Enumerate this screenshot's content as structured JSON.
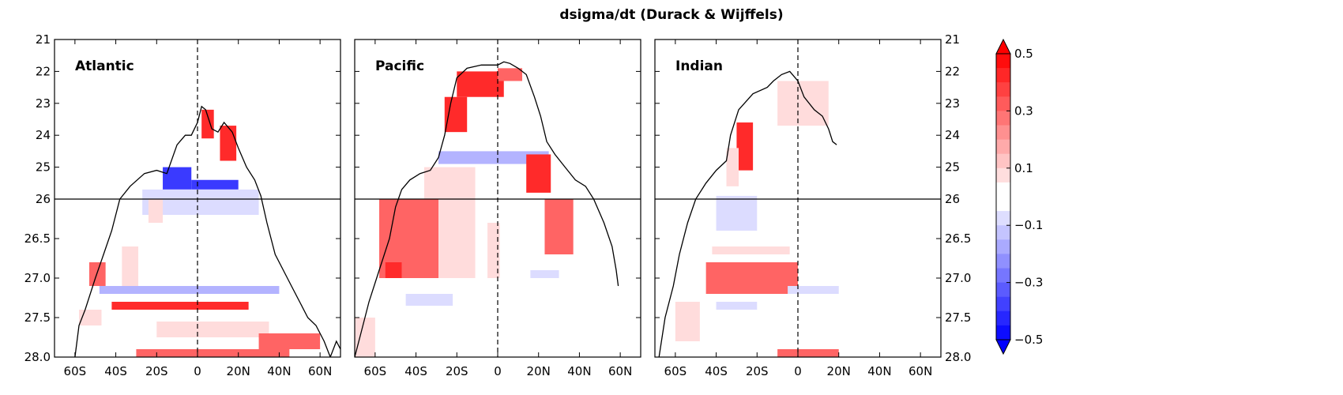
{
  "title": "dsigma/dt (Durack & Wijffels)",
  "colors": {
    "strong_pos": "#ff2a2a",
    "mid_pos": "#ff6464",
    "weak_pos": "#ffb3b3",
    "faint_pos": "#ffdcdc",
    "faint_neg": "#dcdcff",
    "weak_neg": "#b3b3ff",
    "mid_neg": "#6e6eff",
    "strong_neg": "#3a3aff"
  },
  "chart_data": {
    "type": "heatmap",
    "xlim": [
      -70,
      70
    ],
    "y_upper": {
      "range": [
        21,
        26
      ],
      "ticks": [
        21,
        22,
        23,
        24,
        25,
        26
      ]
    },
    "y_lower": {
      "range": [
        26,
        28
      ],
      "ticks": [
        "26",
        "26.5",
        "27.0",
        "27.5",
        "28.0"
      ]
    },
    "x_ticks": [
      {
        "value": -60,
        "label": "60S"
      },
      {
        "value": -40,
        "label": "40S"
      },
      {
        "value": -20,
        "label": "20S"
      },
      {
        "value": 0,
        "label": "0"
      },
      {
        "value": 20,
        "label": "20N"
      },
      {
        "value": 40,
        "label": "40N"
      },
      {
        "value": 60,
        "label": "60N"
      }
    ],
    "panels": [
      {
        "name": "Atlantic",
        "outcrop": [
          [
            -60,
            28.0
          ],
          [
            -58,
            27.6
          ],
          [
            -55,
            27.4
          ],
          [
            -50,
            27.0
          ],
          [
            -46,
            26.7
          ],
          [
            -42,
            26.4
          ],
          [
            -38,
            26.0
          ],
          [
            -33,
            25.6
          ],
          [
            -26,
            25.2
          ],
          [
            -20,
            25.1
          ],
          [
            -15,
            25.2
          ],
          [
            -10,
            24.3
          ],
          [
            -6,
            24.0
          ],
          [
            -3,
            24.0
          ],
          [
            0,
            23.6
          ],
          [
            2,
            23.1
          ],
          [
            4,
            23.2
          ],
          [
            7,
            23.8
          ],
          [
            10,
            23.9
          ],
          [
            13,
            23.6
          ],
          [
            17,
            23.9
          ],
          [
            20,
            24.4
          ],
          [
            24,
            25.0
          ],
          [
            28,
            25.4
          ],
          [
            31,
            25.9
          ],
          [
            34,
            26.3
          ],
          [
            38,
            26.7
          ],
          [
            42,
            26.9
          ],
          [
            46,
            27.1
          ],
          [
            50,
            27.3
          ],
          [
            54,
            27.5
          ],
          [
            58,
            27.6
          ],
          [
            62,
            27.8
          ],
          [
            65,
            28.0
          ],
          [
            68,
            27.8
          ],
          [
            70,
            27.9
          ]
        ],
        "cells": [
          {
            "lat": [
              2,
              8
            ],
            "sigma": [
              23.2,
              24.1
            ],
            "value": 0.3
          },
          {
            "lat": [
              11,
              19
            ],
            "sigma": [
              23.7,
              24.8
            ],
            "value": 0.3
          },
          {
            "lat": [
              -17,
              -3
            ],
            "sigma": [
              25.0,
              25.7
            ],
            "value": -0.3
          },
          {
            "lat": [
              -3,
              20
            ],
            "sigma": [
              25.4,
              25.7
            ],
            "value": -0.3
          },
          {
            "lat": [
              -27,
              30
            ],
            "sigma": [
              25.7,
              26.2
            ],
            "value": -0.1
          },
          {
            "lat": [
              -24,
              -17
            ],
            "sigma": [
              26.0,
              26.3
            ],
            "value": 0.1
          },
          {
            "lat": [
              -53,
              -45
            ],
            "sigma": [
              26.8,
              27.1
            ],
            "value": 0.2
          },
          {
            "lat": [
              -37,
              -29
            ],
            "sigma": [
              26.6,
              27.1
            ],
            "value": 0.1
          },
          {
            "lat": [
              -48,
              40
            ],
            "sigma": [
              27.1,
              27.2
            ],
            "value": -0.15
          },
          {
            "lat": [
              -42,
              25
            ],
            "sigma": [
              27.3,
              27.4
            ],
            "value": 0.3
          },
          {
            "lat": [
              -58,
              -47
            ],
            "sigma": [
              27.4,
              27.6
            ],
            "value": 0.1
          },
          {
            "lat": [
              -20,
              35
            ],
            "sigma": [
              27.55,
              27.75
            ],
            "value": 0.1
          },
          {
            "lat": [
              30,
              60
            ],
            "sigma": [
              27.7,
              27.9
            ],
            "value": 0.2
          },
          {
            "lat": [
              -30,
              45
            ],
            "sigma": [
              27.9,
              28.0
            ],
            "value": 0.2
          }
        ]
      },
      {
        "name": "Pacific",
        "outcrop": [
          [
            -70,
            28.0
          ],
          [
            -67,
            27.7
          ],
          [
            -63,
            27.3
          ],
          [
            -58,
            26.9
          ],
          [
            -53,
            26.5
          ],
          [
            -50,
            26.1
          ],
          [
            -47,
            25.7
          ],
          [
            -43,
            25.4
          ],
          [
            -38,
            25.2
          ],
          [
            -33,
            25.1
          ],
          [
            -29,
            24.7
          ],
          [
            -26,
            24.0
          ],
          [
            -23,
            23.0
          ],
          [
            -20,
            22.2
          ],
          [
            -15,
            21.9
          ],
          [
            -8,
            21.8
          ],
          [
            0,
            21.8
          ],
          [
            3,
            21.7
          ],
          [
            6,
            21.75
          ],
          [
            10,
            21.9
          ],
          [
            14,
            22.1
          ],
          [
            18,
            22.8
          ],
          [
            21,
            23.4
          ],
          [
            24,
            24.2
          ],
          [
            28,
            24.6
          ],
          [
            33,
            25.0
          ],
          [
            38,
            25.4
          ],
          [
            43,
            25.6
          ],
          [
            47,
            26.0
          ],
          [
            52,
            26.3
          ],
          [
            56,
            26.6
          ],
          [
            58,
            26.9
          ],
          [
            59,
            27.1
          ]
        ],
        "cells": [
          {
            "lat": [
              -20,
              3
            ],
            "sigma": [
              22.0,
              22.8
            ],
            "value": 0.3
          },
          {
            "lat": [
              -26,
              -15
            ],
            "sigma": [
              22.8,
              23.9
            ],
            "value": 0.3
          },
          {
            "lat": [
              0,
              12
            ],
            "sigma": [
              21.9,
              22.3
            ],
            "value": 0.2
          },
          {
            "lat": [
              -29,
              25
            ],
            "sigma": [
              24.5,
              24.9
            ],
            "value": -0.15
          },
          {
            "lat": [
              14,
              26
            ],
            "sigma": [
              24.6,
              25.8
            ],
            "value": 0.35
          },
          {
            "lat": [
              -36,
              -11
            ],
            "sigma": [
              25.0,
              27.0
            ],
            "value": 0.1
          },
          {
            "lat": [
              -58,
              -29
            ],
            "sigma": [
              26.0,
              27.0
            ],
            "value": 0.2
          },
          {
            "lat": [
              -5,
              1
            ],
            "sigma": [
              26.3,
              27.0
            ],
            "value": 0.1
          },
          {
            "lat": [
              23,
              37
            ],
            "sigma": [
              26.0,
              26.7
            ],
            "value": 0.2
          },
          {
            "lat": [
              -55,
              -47
            ],
            "sigma": [
              26.8,
              27.0
            ],
            "value": 0.3
          },
          {
            "lat": [
              -45,
              -22
            ],
            "sigma": [
              27.2,
              27.35
            ],
            "value": -0.1
          },
          {
            "lat": [
              16,
              30
            ],
            "sigma": [
              26.9,
              27.0
            ],
            "value": -0.1
          },
          {
            "lat": [
              -70,
              -60
            ],
            "sigma": [
              27.5,
              28.0
            ],
            "value": 0.1
          }
        ]
      },
      {
        "name": "Indian",
        "outcrop": [
          [
            -68,
            28.0
          ],
          [
            -65,
            27.5
          ],
          [
            -61,
            27.1
          ],
          [
            -58,
            26.7
          ],
          [
            -54,
            26.3
          ],
          [
            -50,
            26.0
          ],
          [
            -45,
            25.5
          ],
          [
            -40,
            25.1
          ],
          [
            -35,
            24.8
          ],
          [
            -33,
            24.0
          ],
          [
            -29,
            23.2
          ],
          [
            -22,
            22.7
          ],
          [
            -15,
            22.5
          ],
          [
            -12,
            22.3
          ],
          [
            -8,
            22.1
          ],
          [
            -4,
            22.0
          ],
          [
            0,
            22.3
          ],
          [
            3,
            22.8
          ],
          [
            8,
            23.2
          ],
          [
            12,
            23.4
          ],
          [
            15,
            23.8
          ],
          [
            17,
            24.2
          ],
          [
            19,
            24.3
          ]
        ],
        "cells": [
          {
            "lat": [
              -10,
              15
            ],
            "sigma": [
              22.3,
              23.7
            ],
            "value": 0.1
          },
          {
            "lat": [
              -30,
              -22
            ],
            "sigma": [
              23.6,
              25.1
            ],
            "value": 0.3
          },
          {
            "lat": [
              -35,
              -29
            ],
            "sigma": [
              24.4,
              25.6
            ],
            "value": 0.1
          },
          {
            "lat": [
              -40,
              -20
            ],
            "sigma": [
              25.9,
              26.4
            ],
            "value": -0.1
          },
          {
            "lat": [
              -42,
              -4
            ],
            "sigma": [
              26.6,
              26.7
            ],
            "value": 0.1
          },
          {
            "lat": [
              -45,
              0
            ],
            "sigma": [
              26.8,
              27.2
            ],
            "value": 0.2
          },
          {
            "lat": [
              -40,
              -20
            ],
            "sigma": [
              27.3,
              27.4
            ],
            "value": -0.1
          },
          {
            "lat": [
              -60,
              -48
            ],
            "sigma": [
              27.3,
              27.8
            ],
            "value": 0.1
          },
          {
            "lat": [
              -5,
              20
            ],
            "sigma": [
              27.1,
              27.2
            ],
            "value": -0.1
          },
          {
            "lat": [
              -10,
              20
            ],
            "sigma": [
              27.9,
              28.0
            ],
            "value": 0.2
          }
        ]
      }
    ],
    "colorbar": {
      "range": [
        -0.5,
        0.5
      ],
      "step": 0.05,
      "tick_labels": [
        "0.5",
        "0.3",
        "0.1",
        "−0.1",
        "−0.3",
        "−0.5"
      ],
      "tick_values": [
        0.5,
        0.3,
        0.1,
        -0.1,
        -0.3,
        -0.5
      ]
    }
  }
}
